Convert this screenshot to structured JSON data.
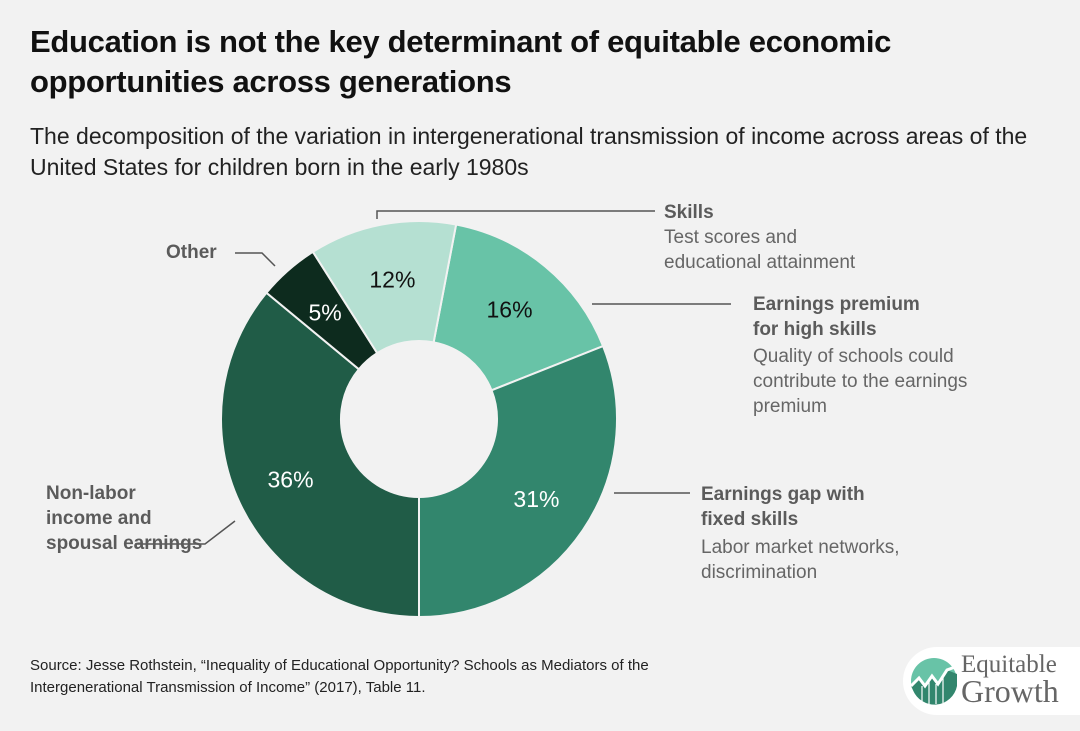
{
  "header": {
    "title": "Education is not the key determinant of equitable economic opportunities across generations",
    "subtitle": "The decomposition of the variation in intergenerational transmission of income across areas of the United States for children born in the early 1980s"
  },
  "labels": {
    "skills": {
      "head": "Skills",
      "desc": "Test scores and educational attainment"
    },
    "premium": {
      "head": "Earnings premium for high skills",
      "desc": "Quality of schools could contribute to the earnings premium"
    },
    "gap": {
      "head": "Earnings gap with fixed skills",
      "desc": "Labor market networks, discrimination"
    },
    "nonlabor": {
      "head": "Non-labor income and spousal earnings"
    },
    "other": {
      "head": "Other"
    }
  },
  "footer": {
    "source": "Source: Jesse Rothstein, “Inequality of Educational Opportunity? Schools as Mediators of the Intergenerational Transmission of Income” (2017), Table 11.",
    "logo_line1": "Equitable",
    "logo_line2": "Growth"
  },
  "colors": {
    "background": "#f2f2f2",
    "premium": "#68c3a7",
    "gap": "#32866d",
    "nonlabor": "#205c47",
    "other": "#0d2b1e",
    "skills": "#b5e0d2"
  },
  "chart_data": {
    "type": "pie",
    "subtype": "donut",
    "title": "Education is not the key determinant of equitable economic opportunities across generations",
    "subtitle": "The decomposition of the variation in intergenerational transmission of income across areas of the United States for children born in the early 1980s",
    "unit": "%",
    "start_angle_deg": 10.8,
    "direction": "clockwise",
    "slices": [
      {
        "key": "premium",
        "label": "Earnings premium for high skills",
        "value": 16,
        "display": "16%",
        "color": "#68c3a7",
        "text_color": "#111111"
      },
      {
        "key": "gap",
        "label": "Earnings gap with fixed skills",
        "value": 31,
        "display": "31%",
        "color": "#32866d",
        "text_color": "#ffffff"
      },
      {
        "key": "nonlabor",
        "label": "Non-labor income and spousal earnings",
        "value": 36,
        "display": "36%",
        "color": "#205c47",
        "text_color": "#ffffff"
      },
      {
        "key": "other",
        "label": "Other",
        "value": 5,
        "display": "5%",
        "color": "#0d2b1e",
        "text_color": "#ffffff"
      },
      {
        "key": "skills",
        "label": "Skills",
        "value": 12,
        "display": "12%",
        "color": "#b5e0d2",
        "text_color": "#111111"
      }
    ]
  }
}
